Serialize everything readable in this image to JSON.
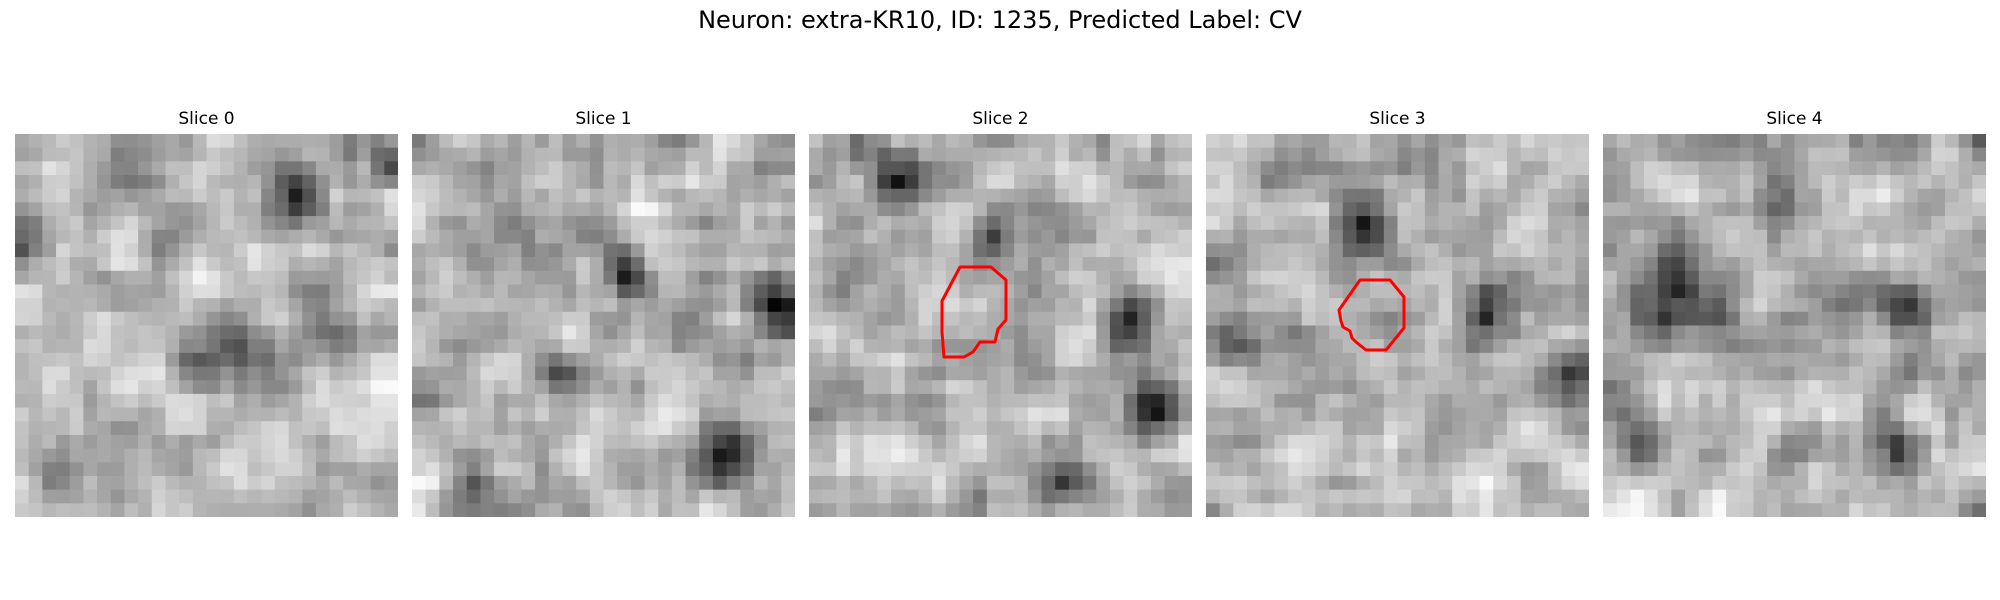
{
  "figure": {
    "title": "Neuron: extra-KR10, ID: 1235, Predicted Label: CV"
  },
  "panels": [
    {
      "title": "Slice 0",
      "seed": 11,
      "has_roi": false
    },
    {
      "title": "Slice 1",
      "seed": 23,
      "has_roi": false
    },
    {
      "title": "Slice 2",
      "seed": 37,
      "has_roi": true
    },
    {
      "title": "Slice 3",
      "seed": 51,
      "has_roi": true
    },
    {
      "title": "Slice 4",
      "seed": 67,
      "has_roi": false
    }
  ],
  "colors": {
    "roi_outline": "#ff0000"
  }
}
